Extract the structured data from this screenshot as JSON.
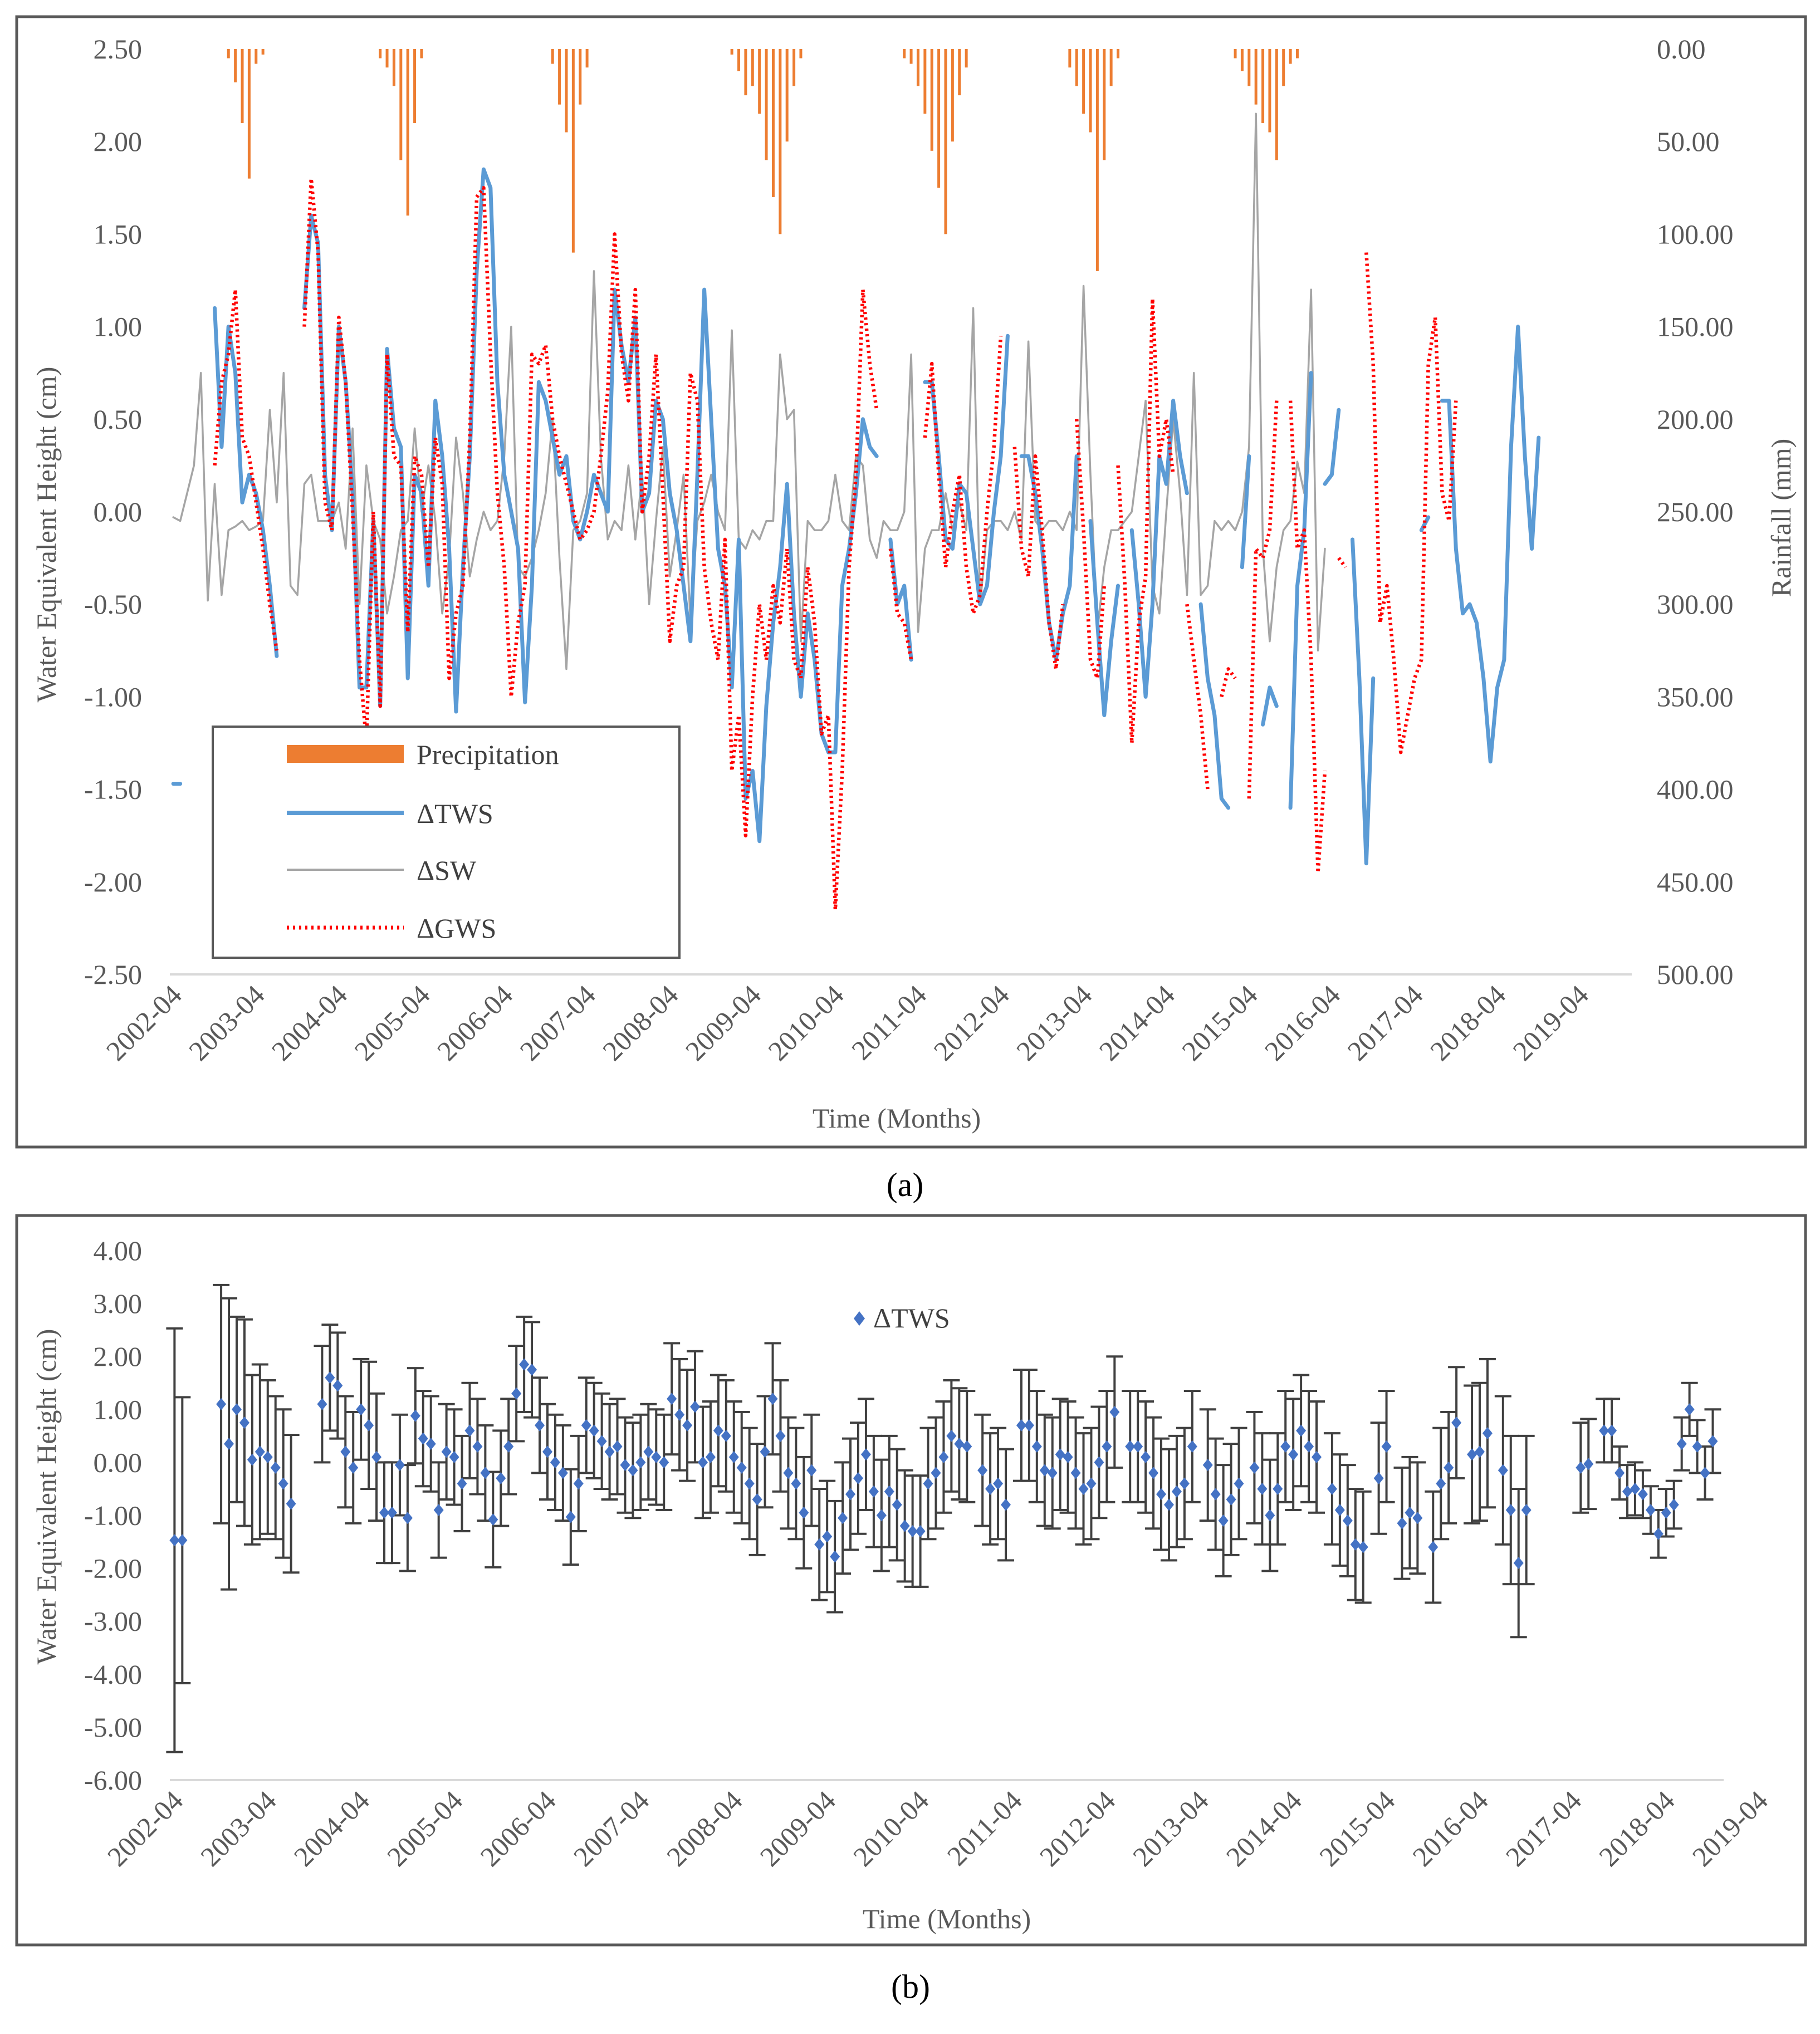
{
  "chart_data": [
    {
      "type": "bar+line",
      "panel_label": "(a)",
      "xlabel": "Time (Months)",
      "ylabel": "Water Equivalent Height (cm)",
      "y2label": "Rainfall (mm)",
      "ylim": [
        -2.5,
        2.5
      ],
      "y2lim": [
        0,
        500
      ],
      "y2_inverted": true,
      "yticks": [
        "2.50",
        "2.00",
        "1.50",
        "1.00",
        "0.50",
        "0.00",
        "-0.50",
        "-1.00",
        "-1.50",
        "-2.00",
        "-2.50"
      ],
      "y2ticks": [
        "0.00",
        "50.00",
        "100.00",
        "150.00",
        "200.00",
        "250.00",
        "300.00",
        "350.00",
        "400.00",
        "450.00",
        "500.00"
      ],
      "xticks": [
        "2002-04",
        "2003-04",
        "2004-04",
        "2005-04",
        "2006-04",
        "2007-04",
        "2008-04",
        "2009-04",
        "2010-04",
        "2011-04",
        "2012-04",
        "2013-04",
        "2014-04",
        "2015-04",
        "2016-04",
        "2017-04",
        "2018-04",
        "2019-04"
      ],
      "x_start": "2002-04",
      "month_count": 212,
      "legend": [
        "Precipitation",
        "ΔTWS",
        "ΔSW",
        "ΔGWS"
      ],
      "colors": {
        "Precipitation": "#ed7d31",
        "ΔTWS": "#5b9bd5",
        "ΔSW": "#a5a5a5",
        "ΔGWS": "#ff0000"
      },
      "series": {
        "precipitation_mm": [
          0,
          0,
          0,
          0,
          0,
          0,
          0,
          0,
          5,
          18,
          40,
          70,
          8,
          3,
          0,
          0,
          0,
          0,
          0,
          0,
          0,
          0,
          0,
          0,
          0,
          0,
          0,
          0,
          0,
          0,
          5,
          10,
          20,
          60,
          90,
          40,
          5,
          0,
          0,
          0,
          0,
          0,
          0,
          0,
          0,
          0,
          0,
          0,
          0,
          0,
          0,
          0,
          0,
          0,
          0,
          8,
          30,
          45,
          110,
          30,
          10,
          0,
          0,
          0,
          0,
          0,
          0,
          0,
          0,
          0,
          0,
          0,
          0,
          0,
          0,
          0,
          0,
          0,
          0,
          0,
          0,
          3,
          12,
          25,
          20,
          35,
          60,
          80,
          100,
          50,
          20,
          5,
          0,
          0,
          0,
          0,
          0,
          0,
          0,
          0,
          0,
          0,
          0,
          0,
          0,
          0,
          5,
          8,
          20,
          35,
          55,
          75,
          100,
          50,
          25,
          10,
          0,
          0,
          0,
          0,
          0,
          0,
          0,
          0,
          0,
          0,
          0,
          0,
          0,
          0,
          10,
          20,
          35,
          45,
          120,
          60,
          20,
          5,
          0,
          0,
          0,
          0,
          0,
          0,
          0,
          0,
          0,
          0,
          0,
          0,
          0,
          0,
          0,
          0,
          5,
          12,
          20,
          30,
          40,
          45,
          60,
          20,
          8,
          5,
          0,
          0,
          0,
          0,
          0,
          0,
          0,
          0,
          0,
          0,
          0,
          0,
          0,
          0,
          0,
          0,
          0,
          0,
          0,
          0,
          0
        ],
        "tws": [
          -1.47,
          -1.47,
          null,
          null,
          null,
          null,
          1.1,
          0.35,
          1.0,
          0.75,
          0.05,
          0.2,
          0.1,
          -0.1,
          -0.4,
          -0.78,
          null,
          null,
          null,
          1.1,
          1.6,
          1.45,
          0.2,
          -0.1,
          1.0,
          0.7,
          0.1,
          -0.95,
          -0.95,
          -0.05,
          -1.05,
          0.88,
          0.45,
          0.35,
          -0.9,
          0.2,
          0.1,
          -0.4,
          0.6,
          0.3,
          -0.2,
          -1.08,
          -0.3,
          0.3,
          1.3,
          1.85,
          1.75,
          0.7,
          0.2,
          0.0,
          -0.2,
          -1.03,
          -0.4,
          0.7,
          0.6,
          0.4,
          0.2,
          0.3,
          -0.05,
          -0.15,
          0.0,
          0.2,
          0.1,
          0.0,
          1.2,
          0.9,
          0.7,
          1.05,
          0.0,
          0.1,
          0.6,
          0.5,
          0.1,
          -0.1,
          -0.4,
          -0.7,
          0.2,
          1.2,
          0.5,
          -0.2,
          -0.4,
          -0.95,
          -0.15,
          -1.55,
          -1.4,
          -1.78,
          -1.05,
          -0.6,
          -0.3,
          0.15,
          -0.55,
          -1.0,
          -0.55,
          -0.8,
          -1.2,
          -1.3,
          -1.3,
          -0.4,
          -0.2,
          0.1,
          0.5,
          0.35,
          0.3,
          null,
          -0.15,
          -0.5,
          -0.4,
          -0.8,
          null,
          0.7,
          0.7,
          0.3,
          -0.15,
          -0.2,
          0.15,
          0.1,
          -0.2,
          -0.5,
          -0.4,
          0.0,
          0.3,
          0.95,
          null,
          0.3,
          0.3,
          0.1,
          -0.2,
          -0.6,
          -0.8,
          -0.55,
          -0.4,
          0.3,
          null,
          -0.05,
          -0.6,
          -1.1,
          -0.7,
          -0.4,
          null,
          -0.1,
          -0.5,
          -1.0,
          -0.5,
          0.3,
          0.15,
          0.6,
          0.3,
          0.1,
          null,
          -0.5,
          -0.9,
          -1.1,
          -1.55,
          -1.6,
          null,
          -0.3,
          0.3,
          null,
          -1.15,
          -0.95,
          -1.05,
          null,
          -1.6,
          -0.4,
          -0.1,
          0.75,
          null,
          0.15,
          0.2,
          0.55,
          null,
          -0.15,
          -0.9,
          -1.9,
          -0.9,
          null,
          null,
          null,
          null,
          null,
          null,
          -0.1,
          -0.03,
          null,
          0.6,
          0.6,
          -0.2,
          -0.55,
          -0.5,
          -0.6,
          -0.9,
          -1.35,
          -0.95,
          -0.8,
          0.35,
          1.0,
          0.3,
          -0.2,
          0.4
        ],
        "sw": [
          -0.03,
          -0.05,
          0.1,
          0.25,
          0.75,
          -0.48,
          0.15,
          -0.45,
          -0.1,
          -0.08,
          -0.05,
          -0.1,
          -0.08,
          -0.05,
          0.55,
          0.05,
          0.75,
          -0.4,
          -0.45,
          0.15,
          0.2,
          -0.05,
          -0.05,
          -0.05,
          0.05,
          -0.2,
          0.45,
          -0.5,
          0.25,
          -0.05,
          -0.15,
          -0.55,
          -0.35,
          -0.1,
          -0.05,
          0.45,
          0.0,
          0.25,
          -0.05,
          -0.55,
          -0.25,
          0.4,
          0.1,
          -0.35,
          -0.15,
          0.0,
          -0.1,
          -0.05,
          0.3,
          1.0,
          -0.3,
          -0.35,
          -0.25,
          -0.1,
          0.1,
          0.5,
          -0.25,
          -0.85,
          -0.1,
          -0.05,
          0.1,
          1.3,
          0.3,
          -0.15,
          -0.05,
          -0.1,
          0.25,
          -0.15,
          0.2,
          -0.5,
          -0.05,
          0.35,
          -0.35,
          -0.1,
          0.2,
          -0.6,
          -0.05,
          0.05,
          0.2,
          0.0,
          -0.1,
          0.98,
          -0.15,
          -0.2,
          -0.1,
          -0.15,
          -0.05,
          -0.05,
          0.85,
          0.5,
          0.55,
          -0.7,
          -0.05,
          -0.1,
          -0.1,
          -0.05,
          0.2,
          -0.05,
          -0.1,
          0.3,
          0.25,
          -0.15,
          -0.25,
          -0.05,
          -0.1,
          -0.1,
          0.0,
          0.85,
          -0.65,
          -0.2,
          -0.1,
          -0.1,
          0.1,
          -0.1,
          0.05,
          -0.1,
          1.1,
          -0.5,
          -0.1,
          -0.05,
          -0.05,
          -0.1,
          0.0,
          -0.15,
          0.92,
          -0.05,
          -0.1,
          -0.05,
          -0.05,
          -0.1,
          0.0,
          -0.1,
          1.22,
          0.2,
          -0.65,
          -0.3,
          -0.1,
          -0.1,
          -0.05,
          0.0,
          0.3,
          0.6,
          -0.4,
          -0.55,
          0.0,
          0.5,
          0.1,
          -0.45,
          0.75,
          -0.45,
          -0.4,
          -0.05,
          -0.1,
          -0.05,
          -0.1,
          0.0,
          0.35,
          2.15,
          -0.2,
          -0.7,
          -0.3,
          -0.1,
          -0.05,
          0.27,
          0.1,
          1.2,
          -0.75,
          -0.2
        ],
        "gws": [
          -1.45,
          null,
          null,
          null,
          null,
          null,
          0.25,
          0.7,
          0.85,
          1.2,
          0.4,
          0.3,
          0.05,
          -0.2,
          -0.5,
          -0.75,
          null,
          null,
          null,
          1.0,
          1.8,
          1.4,
          0.05,
          -0.1,
          1.05,
          0.7,
          0.0,
          -0.8,
          -1.25,
          0.0,
          -1.05,
          0.85,
          0.3,
          0.25,
          -0.65,
          0.3,
          0.2,
          -0.3,
          0.4,
          0.15,
          -0.9,
          -0.55,
          -0.4,
          0.4,
          1.7,
          1.75,
          0.85,
          0.1,
          -0.3,
          -1.0,
          -0.6,
          -0.4,
          0.85,
          0.8,
          0.9,
          0.5,
          0.3,
          0.15,
          0.0,
          -0.15,
          -0.1,
          0.0,
          0.3,
          0.65,
          1.5,
          0.85,
          0.6,
          1.2,
          0.0,
          0.3,
          0.85,
          0.1,
          -0.7,
          -0.4,
          -0.3,
          0.75,
          0.6,
          -0.3,
          -0.6,
          -0.8,
          -0.15,
          -1.4,
          -1.1,
          -1.75,
          -1.0,
          -0.5,
          -0.8,
          -0.4,
          -0.6,
          -0.2,
          -0.8,
          -0.9,
          -0.3,
          -0.6,
          -1.2,
          -1.1,
          -2.15,
          -1.4,
          -0.3,
          0.2,
          1.2,
          0.8,
          0.55,
          null,
          -0.2,
          -0.55,
          -0.6,
          -0.8,
          null,
          0.4,
          0.8,
          0.2,
          -0.3,
          0.0,
          0.2,
          -0.3,
          -0.55,
          -0.45,
          0.0,
          0.35,
          0.95,
          null,
          0.35,
          -0.2,
          -0.35,
          0.3,
          -0.1,
          -0.6,
          -0.85,
          -0.5,
          null,
          0.5,
          -0.1,
          -0.8,
          -0.9,
          -0.4,
          null,
          0.25,
          -0.4,
          -1.25,
          -0.6,
          -0.35,
          1.15,
          0.3,
          0.5,
          0.2,
          null,
          -0.5,
          -0.8,
          -1.1,
          -1.5,
          null,
          -1.0,
          -0.85,
          -0.9,
          null,
          -1.55,
          -0.2,
          -0.25,
          -0.1,
          0.6,
          null,
          0.6,
          -0.2,
          -0.1,
          -0.8,
          -1.95,
          -1.4,
          null,
          -0.25,
          -0.3,
          null,
          null,
          1.4,
          0.8,
          -0.6,
          -0.4,
          -0.8,
          -1.3,
          -1.1,
          -0.9,
          -0.8,
          0.8,
          1.05,
          0.1,
          -0.05,
          0.6
        ]
      }
    },
    {
      "type": "scatter+errorbar",
      "panel_label": "(b)",
      "xlabel": "Time (Months)",
      "ylabel": "Water Equivalent Height (cm)",
      "ylim": [
        -6,
        4
      ],
      "yticks": [
        "4.00",
        "3.00",
        "2.00",
        "1.00",
        "0.00",
        "-1.00",
        "-2.00",
        "-3.00",
        "-4.00",
        "-5.00",
        "-6.00"
      ],
      "xticks": [
        "2002-04",
        "2003-04",
        "2004-04",
        "2005-04",
        "2006-04",
        "2007-04",
        "2008-04",
        "2009-04",
        "2010-04",
        "2011-04",
        "2012-04",
        "2013-04",
        "2014-04",
        "2015-04",
        "2016-04",
        "2017-04",
        "2018-04",
        "2019-04"
      ],
      "legend": [
        "ΔTWS"
      ],
      "marker_color": "#4472c4",
      "errorbar_color": "#404040",
      "series": {
        "tws_error_cm": [
          4.0,
          2.7,
          null,
          null,
          null,
          null,
          2.25,
          2.75,
          1.75,
          1.95,
          1.6,
          1.65,
          1.45,
          1.35,
          1.4,
          1.3,
          null,
          null,
          null,
          1.1,
          1.0,
          1.0,
          1.05,
          1.05,
          0.95,
          1.2,
          1.2,
          0.95,
          0.95,
          0.95,
          1.0,
          0.9,
          0.9,
          0.9,
          0.9,
          0.9,
          0.9,
          0.9,
          0.9,
          0.9,
          0.9,
          0.9,
          0.9,
          0.9,
          0.9,
          0.9,
          0.9,
          0.9,
          0.9,
          0.9,
          0.9,
          0.9,
          0.9,
          0.9,
          0.9,
          0.9,
          0.9,
          0.9,
          0.9,
          0.9,
          0.9,
          0.9,
          0.9,
          0.9,
          1.05,
          1.05,
          1.05,
          1.05,
          1.05,
          1.05,
          1.05,
          1.05,
          1.05,
          1.05,
          1.05,
          1.05,
          1.05,
          1.05,
          1.05,
          1.05,
          1.05,
          1.05,
          1.05,
          1.05,
          1.05,
          1.05,
          1.05,
          1.05,
          1.05,
          1.05,
          1.05,
          1.05,
          1.05,
          1.05,
          1.05,
          1.05,
          1.05,
          1.05,
          1.05,
          1.05,
          1.05,
          1.05,
          1.05,
          null,
          1.05,
          1.05,
          1.05,
          1.05,
          null,
          1.05,
          1.05,
          1.05,
          1.05,
          1.05,
          1.05,
          1.05,
          1.05,
          1.05,
          1.05,
          1.05,
          1.05,
          1.05,
          null,
          1.05,
          1.05,
          1.05,
          1.05,
          1.05,
          1.05,
          1.05,
          1.05,
          1.05,
          null,
          1.05,
          1.05,
          1.05,
          1.05,
          1.05,
          null,
          1.05,
          1.05,
          1.05,
          1.05,
          1.05,
          1.05,
          1.05,
          1.05,
          1.05,
          null,
          1.05,
          1.05,
          1.05,
          1.05,
          1.05,
          null,
          1.05,
          1.05,
          null,
          1.05,
          1.05,
          1.05,
          null,
          1.05,
          1.05,
          1.05,
          1.05,
          null,
          1.3,
          1.3,
          1.4,
          null,
          1.4,
          1.4,
          1.4,
          1.4,
          null,
          null,
          null,
          null,
          null,
          null,
          0.85,
          0.85,
          null,
          0.6,
          0.6,
          0.5,
          0.5,
          0.5,
          0.45,
          0.45,
          0.45,
          0.45,
          0.45,
          0.5,
          0.5,
          0.5,
          0.5,
          0.6
        ]
      }
    }
  ]
}
